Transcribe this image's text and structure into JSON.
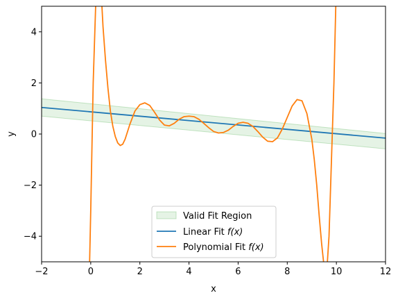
{
  "chart_data": {
    "type": "line",
    "title": "",
    "xlabel": "x",
    "ylabel": "y",
    "xlim": [
      -2,
      12
    ],
    "ylim": [
      -5,
      5
    ],
    "x_ticks": [
      -2,
      0,
      2,
      4,
      6,
      8,
      10,
      12
    ],
    "x_tick_labels": [
      "−2",
      "0",
      "2",
      "4",
      "6",
      "8",
      "10",
      "12"
    ],
    "y_ticks": [
      -4,
      -2,
      0,
      2,
      4
    ],
    "y_tick_labels": [
      "−4",
      "−2",
      "0",
      "2",
      "4"
    ],
    "grid": false,
    "legend_position": "lower-center",
    "legend": [
      {
        "key": "band",
        "label": "Valid Fit Region"
      },
      {
        "key": "linear",
        "label": "Linear Fit ",
        "math": "f(x)"
      },
      {
        "key": "poly",
        "label": "Polynomial Fit ",
        "math": "f(x)"
      }
    ],
    "band": {
      "name": "Valid Fit Region",
      "color": "#2ca02c",
      "x": [
        -2,
        12
      ],
      "lower": [
        0.7,
        -0.58
      ],
      "upper": [
        1.38,
        0.02
      ]
    },
    "series": [
      {
        "name": "Linear Fit f(x)",
        "color": "#1f77b4",
        "x": [
          -2,
          12
        ],
        "y": [
          1.04,
          -0.16
        ]
      },
      {
        "name": "Polynomial Fit f(x)",
        "color": "#ff7f0e",
        "x": [
          -0.05,
          0.0,
          0.05,
          0.1,
          0.2,
          0.3,
          0.4,
          0.5,
          0.6,
          0.7,
          0.8,
          0.9,
          1.0,
          1.1,
          1.2,
          1.3,
          1.4,
          1.6,
          1.8,
          2.0,
          2.2,
          2.4,
          2.6,
          2.8,
          3.0,
          3.2,
          3.4,
          3.6,
          3.8,
          4.0,
          4.2,
          4.4,
          4.6,
          4.8,
          5.0,
          5.2,
          5.4,
          5.6,
          5.8,
          6.0,
          6.2,
          6.4,
          6.6,
          6.8,
          7.0,
          7.2,
          7.4,
          7.6,
          7.8,
          8.0,
          8.2,
          8.4,
          8.6,
          8.8,
          9.0,
          9.1,
          9.2,
          9.3,
          9.4,
          9.5,
          9.6,
          9.7,
          9.8,
          9.9,
          9.95,
          10.0
        ],
        "y": [
          -5.2,
          -3.0,
          -0.5,
          2.0,
          5.0,
          8.5,
          6.0,
          4.2,
          2.9,
          1.8,
          0.9,
          0.3,
          -0.1,
          -0.35,
          -0.45,
          -0.4,
          -0.2,
          0.4,
          0.9,
          1.15,
          1.22,
          1.12,
          0.85,
          0.55,
          0.35,
          0.32,
          0.42,
          0.58,
          0.68,
          0.7,
          0.68,
          0.58,
          0.42,
          0.25,
          0.1,
          0.04,
          0.06,
          0.15,
          0.3,
          0.42,
          0.46,
          0.42,
          0.3,
          0.1,
          -0.12,
          -0.28,
          -0.3,
          -0.15,
          0.2,
          0.65,
          1.1,
          1.35,
          1.3,
          0.8,
          -0.2,
          -1.0,
          -2.0,
          -3.2,
          -4.3,
          -5.2,
          -5.5,
          -4.0,
          -1.0,
          2.0,
          4.0,
          6.0
        ]
      }
    ]
  }
}
